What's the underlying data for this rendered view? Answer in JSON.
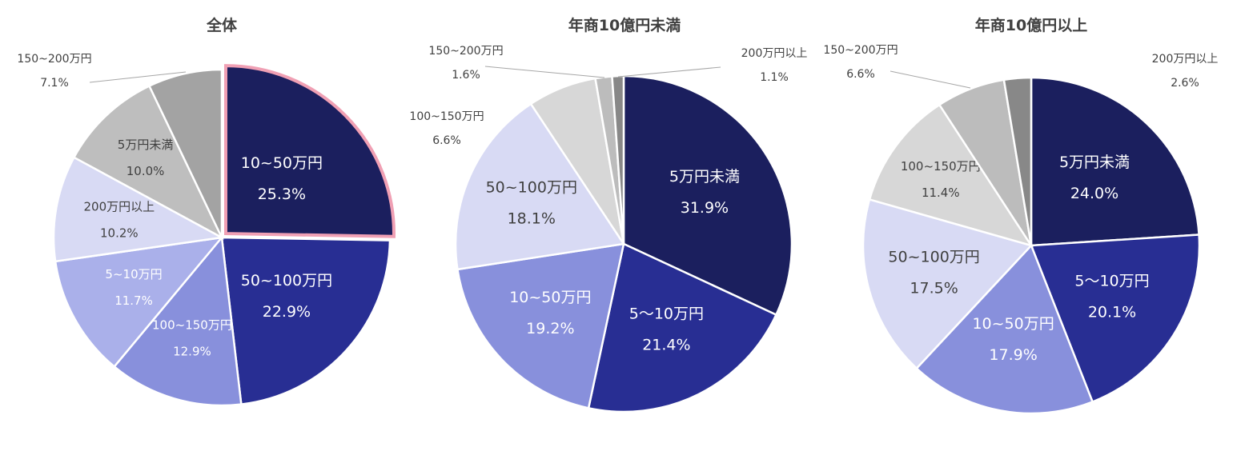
{
  "chart_data": [
    {
      "type": "pie",
      "title": "全体",
      "slices": [
        {
          "label": "10~50万円",
          "value": 25.3,
          "pct": "25.3%",
          "color": "#1b1f5e",
          "highlight": true
        },
        {
          "label": "50~100万円",
          "value": 22.9,
          "pct": "22.9%",
          "color": "#282e93"
        },
        {
          "label": "100~150万円",
          "value": 12.9,
          "pct": "12.9%",
          "color": "#8890dc"
        },
        {
          "label": "5~10万円",
          "value": 11.7,
          "pct": "11.7%",
          "color": "#aab0ea"
        },
        {
          "label": "200万円以上",
          "value": 10.2,
          "pct": "10.2%",
          "color": "#d8daf4"
        },
        {
          "label": "5万円未満",
          "value": 10.0,
          "pct": "10.0%",
          "color": "#bebebe"
        },
        {
          "label": "150~200万円",
          "value": 7.1,
          "pct": "7.1%",
          "color": "#a3a3a3"
        }
      ],
      "highlight_color": "#f0a0b4"
    },
    {
      "type": "pie",
      "title": "年商10億円未満",
      "slices": [
        {
          "label": "5万円未満",
          "value": 31.9,
          "pct": "31.9%",
          "color": "#1b1f5e"
        },
        {
          "label": "5～10万円",
          "value": 21.4,
          "pct": "21.4%",
          "color": "#282e93"
        },
        {
          "label": "10~50万円",
          "value": 19.2,
          "pct": "19.2%",
          "color": "#8890dc"
        },
        {
          "label": "50~100万円",
          "value": 18.1,
          "pct": "18.1%",
          "color": "#d8daf4"
        },
        {
          "label": "100~150万円",
          "value": 6.6,
          "pct": "6.6%",
          "color": "#d7d7d7"
        },
        {
          "label": "150~200万円",
          "value": 1.6,
          "pct": "1.6%",
          "color": "#bcbcbc"
        },
        {
          "label": "200万円以上",
          "value": 1.1,
          "pct": "1.1%",
          "color": "#888888"
        }
      ]
    },
    {
      "type": "pie",
      "title": "年商10億円以上",
      "slices": [
        {
          "label": "5万円未満",
          "value": 24.0,
          "pct": "24.0%",
          "color": "#1b1f5e"
        },
        {
          "label": "5～10万円",
          "value": 20.1,
          "pct": "20.1%",
          "color": "#282e93"
        },
        {
          "label": "10~50万円",
          "value": 17.9,
          "pct": "17.9%",
          "color": "#8890dc"
        },
        {
          "label": "50~100万円",
          "value": 17.5,
          "pct": "17.5%",
          "color": "#d8daf4"
        },
        {
          "label": "100~150万円",
          "value": 11.4,
          "pct": "11.4%",
          "color": "#d7d7d7"
        },
        {
          "label": "150~200万円",
          "value": 6.6,
          "pct": "6.6%",
          "color": "#bcbcbc"
        },
        {
          "label": "200万円以上",
          "value": 2.6,
          "pct": "2.6%",
          "color": "#888888"
        }
      ]
    }
  ]
}
